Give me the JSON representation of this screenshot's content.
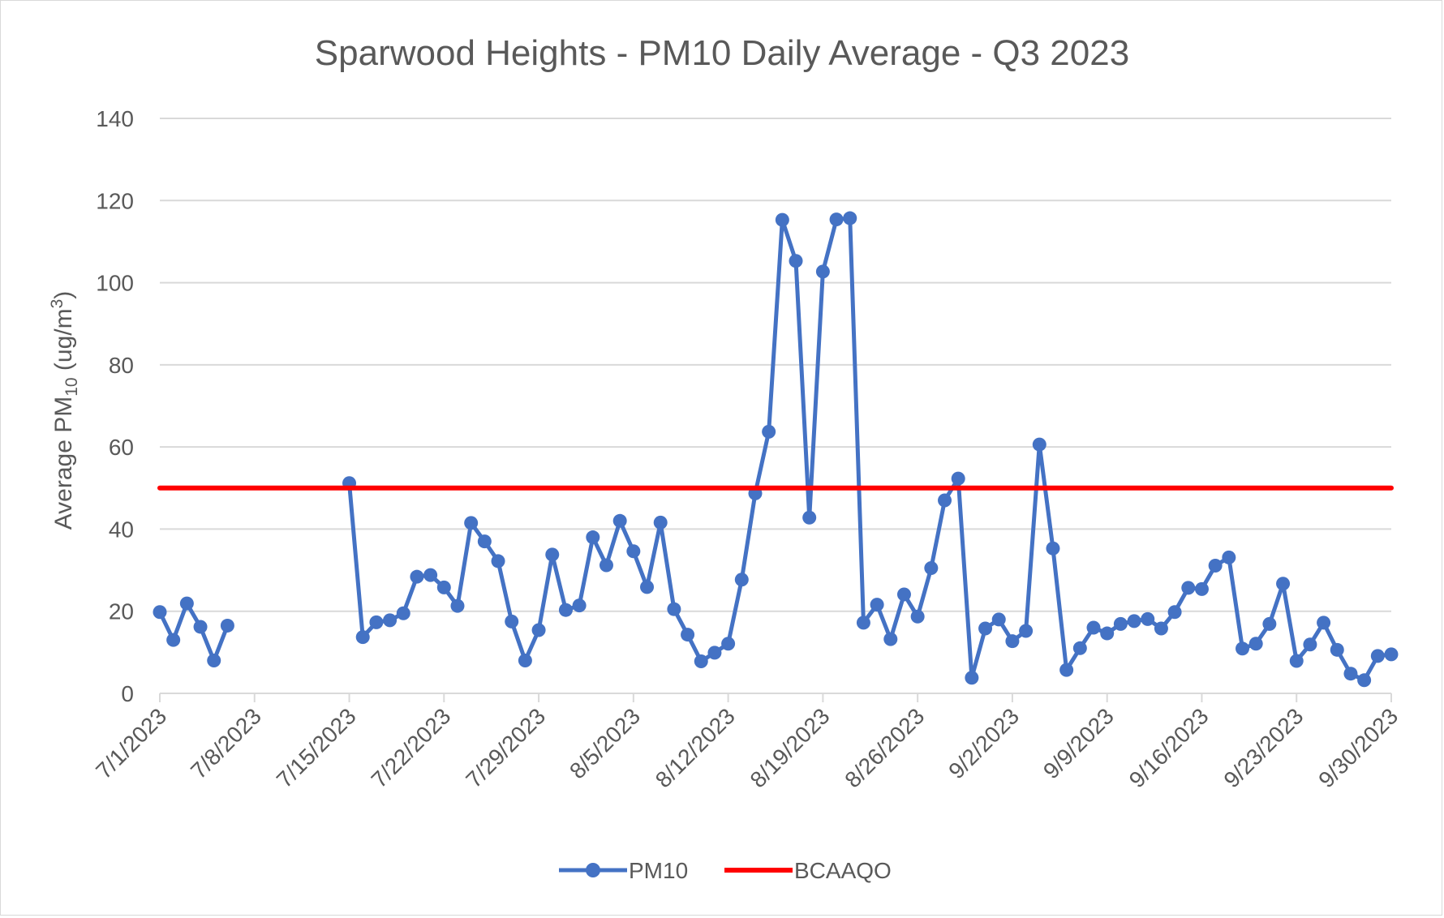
{
  "chart_data": {
    "type": "line",
    "title": "Sparwood Heights - PM10 Daily Average - Q3 2023",
    "ylabel": {
      "prefix": "Average PM",
      "sub": "10",
      "mid": " (ug/m",
      "sup": "3",
      "suffix": ")"
    },
    "xlabel": "",
    "ylim": [
      0,
      140
    ],
    "yticks": [
      "0",
      "20",
      "40",
      "60",
      "80",
      "100",
      "120",
      "140"
    ],
    "xticks": [
      "7/1/2023",
      "7/8/2023",
      "7/15/2023",
      "7/22/2023",
      "7/29/2023",
      "8/5/2023",
      "8/12/2023",
      "8/19/2023",
      "8/26/2023",
      "9/2/2023",
      "9/9/2023",
      "9/16/2023",
      "9/23/2023",
      "9/30/2023"
    ],
    "x_start": "7/1/2023",
    "grid": true,
    "legend_position": "bottom",
    "series": [
      {
        "name": "PM10",
        "color": "#4472c4",
        "marker": "circle",
        "points": [
          [
            "7/1/2023",
            19.8
          ],
          [
            "7/2/2023",
            13.0
          ],
          [
            "7/3/2023",
            21.9
          ],
          [
            "7/4/2023",
            16.2
          ],
          [
            "7/5/2023",
            8.0
          ],
          [
            "7/6/2023",
            16.5
          ],
          [
            "7/15/2023",
            51.2
          ],
          [
            "7/16/2023",
            13.7
          ],
          [
            "7/17/2023",
            17.3
          ],
          [
            "7/18/2023",
            17.8
          ],
          [
            "7/19/2023",
            19.5
          ],
          [
            "7/20/2023",
            28.4
          ],
          [
            "7/21/2023",
            28.8
          ],
          [
            "7/22/2023",
            25.8
          ],
          [
            "7/23/2023",
            21.3
          ],
          [
            "7/24/2023",
            41.5
          ],
          [
            "7/25/2023",
            37.0
          ],
          [
            "7/26/2023",
            32.2
          ],
          [
            "7/27/2023",
            17.5
          ],
          [
            "7/28/2023",
            8.0
          ],
          [
            "7/29/2023",
            15.4
          ],
          [
            "7/30/2023",
            33.8
          ],
          [
            "7/31/2023",
            20.3
          ],
          [
            "8/1/2023",
            21.4
          ],
          [
            "8/2/2023",
            38.0
          ],
          [
            "8/3/2023",
            31.2
          ],
          [
            "8/4/2023",
            42.0
          ],
          [
            "8/5/2023",
            34.6
          ],
          [
            "8/6/2023",
            25.9
          ],
          [
            "8/7/2023",
            41.6
          ],
          [
            "8/8/2023",
            20.5
          ],
          [
            "8/9/2023",
            14.3
          ],
          [
            "8/10/2023",
            7.8
          ],
          [
            "8/11/2023",
            9.9
          ],
          [
            "8/12/2023",
            12.1
          ],
          [
            "8/13/2023",
            27.7
          ],
          [
            "8/14/2023",
            48.7
          ],
          [
            "8/15/2023",
            63.7
          ],
          [
            "8/16/2023",
            115.3
          ],
          [
            "8/17/2023",
            105.3
          ],
          [
            "8/18/2023",
            42.8
          ],
          [
            "8/19/2023",
            102.7
          ],
          [
            "8/20/2023",
            115.4
          ],
          [
            "8/21/2023",
            115.7
          ],
          [
            "8/22/2023",
            17.2
          ],
          [
            "8/23/2023",
            21.6
          ],
          [
            "8/24/2023",
            13.2
          ],
          [
            "8/25/2023",
            24.1
          ],
          [
            "8/26/2023",
            18.7
          ],
          [
            "8/27/2023",
            30.5
          ],
          [
            "8/28/2023",
            47.0
          ],
          [
            "8/29/2023",
            52.3
          ],
          [
            "8/30/2023",
            3.8
          ],
          [
            "8/31/2023",
            15.8
          ],
          [
            "9/1/2023",
            18.0
          ],
          [
            "9/2/2023",
            12.7
          ],
          [
            "9/3/2023",
            15.2
          ],
          [
            "9/4/2023",
            60.6
          ],
          [
            "9/5/2023",
            35.3
          ],
          [
            "9/6/2023",
            5.7
          ],
          [
            "9/7/2023",
            11.0
          ],
          [
            "9/8/2023",
            16.0
          ],
          [
            "9/9/2023",
            14.6
          ],
          [
            "9/10/2023",
            16.9
          ],
          [
            "9/11/2023",
            17.6
          ],
          [
            "9/12/2023",
            18.1
          ],
          [
            "9/13/2023",
            15.8
          ],
          [
            "9/14/2023",
            19.8
          ],
          [
            "9/15/2023",
            25.7
          ],
          [
            "9/16/2023",
            25.4
          ],
          [
            "9/17/2023",
            31.1
          ],
          [
            "9/18/2023",
            33.1
          ],
          [
            "9/19/2023",
            10.9
          ],
          [
            "9/20/2023",
            12.1
          ],
          [
            "9/21/2023",
            16.9
          ],
          [
            "9/22/2023",
            26.7
          ],
          [
            "9/23/2023",
            7.9
          ],
          [
            "9/24/2023",
            11.9
          ],
          [
            "9/25/2023",
            17.2
          ],
          [
            "9/26/2023",
            10.6
          ],
          [
            "9/27/2023",
            4.8
          ],
          [
            "9/28/2023",
            3.2
          ],
          [
            "9/29/2023",
            9.1
          ],
          [
            "9/30/2023",
            9.5
          ]
        ]
      },
      {
        "name": "BCAAQO",
        "color": "#ff0000",
        "marker": "none",
        "points": [
          [
            "7/1/2023",
            50
          ],
          [
            "9/30/2023",
            50
          ]
        ]
      }
    ]
  }
}
